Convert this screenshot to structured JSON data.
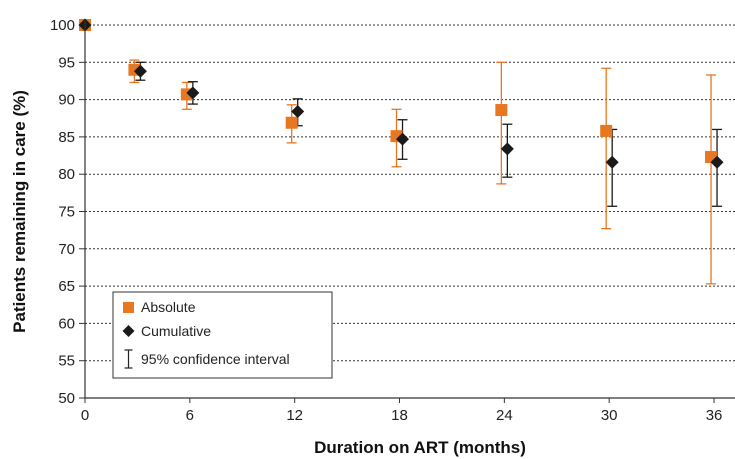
{
  "chart_data": {
    "type": "scatter",
    "xlabel": "Duration on ART (months)",
    "ylabel": "Patients remaining in care (%)",
    "xlim": [
      0,
      37.2
    ],
    "ylim": [
      50,
      100
    ],
    "x_ticks": [
      "0",
      "6",
      "12",
      "18",
      "24",
      "30",
      "36"
    ],
    "y_ticks": [
      "50",
      "55",
      "60",
      "65",
      "70",
      "75",
      "80",
      "85",
      "90",
      "95",
      "100"
    ],
    "grid": "horizontal dotted",
    "legend": {
      "position": "bottom-left",
      "entries": [
        "Absolute",
        "Cumulative",
        "95% confidence interval"
      ]
    },
    "colors": {
      "absolute": "#e87722",
      "cumulative": "#1a1a1a"
    },
    "series": [
      {
        "name": "Absolute",
        "marker": "square",
        "points": [
          {
            "x": 0,
            "y": 100,
            "lo": 100,
            "hi": 100
          },
          {
            "x": 3,
            "y": 94,
            "lo": 92.3,
            "hi": 95.3
          },
          {
            "x": 6,
            "y": 90.7,
            "lo": 88.7,
            "hi": 92.3
          },
          {
            "x": 12,
            "y": 86.9,
            "lo": 84.2,
            "hi": 89.3
          },
          {
            "x": 18,
            "y": 85.1,
            "lo": 81,
            "hi": 88.7
          },
          {
            "x": 24,
            "y": 88.6,
            "lo": 78.7,
            "hi": 95
          },
          {
            "x": 30,
            "y": 85.8,
            "lo": 72.7,
            "hi": 94.2
          },
          {
            "x": 36,
            "y": 82.3,
            "lo": 65.3,
            "hi": 93.3
          }
        ]
      },
      {
        "name": "Cumulative",
        "marker": "diamond",
        "points": [
          {
            "x": 0,
            "y": 100,
            "lo": 100,
            "hi": 100
          },
          {
            "x": 3,
            "y": 93.8,
            "lo": 92.6,
            "hi": 95
          },
          {
            "x": 6,
            "y": 90.9,
            "lo": 89.4,
            "hi": 92.4
          },
          {
            "x": 12,
            "y": 88.4,
            "lo": 86.5,
            "hi": 90.1
          },
          {
            "x": 18,
            "y": 84.7,
            "lo": 82,
            "hi": 87.3
          },
          {
            "x": 24,
            "y": 83.4,
            "lo": 79.6,
            "hi": 86.7
          },
          {
            "x": 30,
            "y": 81.6,
            "lo": 75.7,
            "hi": 86
          },
          {
            "x": 36,
            "y": 81.6,
            "lo": 75.7,
            "hi": 86
          }
        ]
      }
    ]
  }
}
